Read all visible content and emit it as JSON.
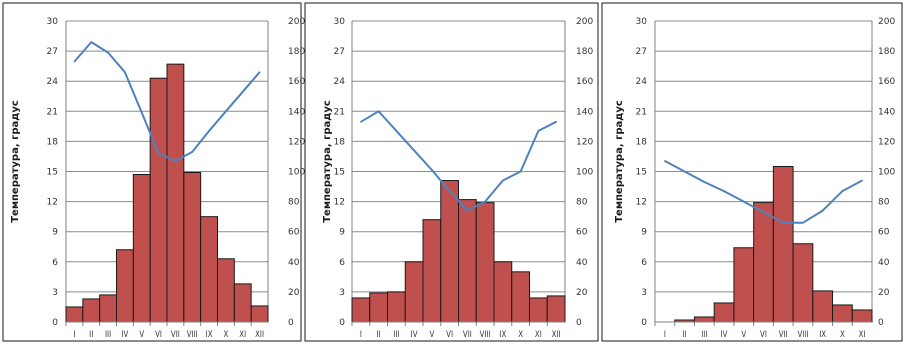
{
  "chart_data": [
    {
      "type": "bar+line",
      "ylabel": "Температура, градус",
      "yticks_left": [
        "0",
        "3",
        "6",
        "9",
        "12",
        "15",
        "18",
        "21",
        "24",
        "27",
        "30"
      ],
      "yticks_right": [
        "0",
        "20",
        "40",
        "60",
        "80",
        "100",
        "120",
        "140",
        "160",
        "180",
        "200"
      ],
      "categories": [
        "I",
        "II",
        "III",
        "IV",
        "V",
        "VI",
        "VII",
        "VIII",
        "IX",
        "X",
        "XI",
        "XII"
      ],
      "ylim": [
        0,
        30
      ],
      "y2lim": [
        0,
        200
      ],
      "bar_color": "#C0504D",
      "line_color": "#4F81BD",
      "bars": [
        1.5,
        2.3,
        2.7,
        7.2,
        14.7,
        24.3,
        25.7,
        14.9,
        10.5,
        6.3,
        3.8,
        1.6
      ],
      "line": [
        173,
        186,
        179,
        166,
        139,
        112,
        107,
        113,
        127,
        140,
        153,
        166
      ]
    },
    {
      "type": "bar+line",
      "ylabel": "Температура, градус",
      "yticks_left": [
        "0",
        "3",
        "6",
        "9",
        "12",
        "15",
        "18",
        "21",
        "24",
        "27",
        "30"
      ],
      "yticks_right": [
        "0",
        "20",
        "40",
        "60",
        "80",
        "100",
        "120",
        "140",
        "160",
        "180",
        "200"
      ],
      "categories": [
        "I",
        "II",
        "III",
        "IV",
        "V",
        "VI",
        "VII",
        "VIII",
        "IX",
        "X",
        "XI",
        "XII"
      ],
      "ylim": [
        0,
        30
      ],
      "y2lim": [
        0,
        200
      ],
      "bar_color": "#C0504D",
      "line_color": "#4F81BD",
      "bars": [
        2.4,
        2.9,
        3.0,
        6.0,
        10.2,
        14.1,
        12.2,
        11.9,
        6.0,
        5.0,
        2.4,
        2.6
      ],
      "line": [
        133,
        140,
        127,
        114,
        101,
        87,
        74,
        80,
        94,
        100,
        127,
        133
      ]
    },
    {
      "type": "bar+line",
      "ylabel": "Температура, градус",
      "yticks_left": [
        "0",
        "3",
        "6",
        "9",
        "12",
        "15",
        "18",
        "21",
        "24",
        "27",
        "30"
      ],
      "yticks_right": [
        "0",
        "20",
        "40",
        "60",
        "80",
        "100",
        "120",
        "140",
        "160",
        "180",
        "200"
      ],
      "categories": [
        "I",
        "II",
        "III",
        "IV",
        "V",
        "VI",
        "VII",
        "VIII",
        "IX",
        "X",
        "XI"
      ],
      "ylim": [
        0,
        30
      ],
      "y2lim": [
        0,
        200
      ],
      "bar_color": "#C0504D",
      "line_color": "#4F81BD",
      "bars": [
        0,
        0.2,
        0.5,
        1.9,
        7.4,
        11.9,
        15.5,
        7.8,
        3.1,
        1.7,
        1.2
      ],
      "line": [
        107,
        100,
        93,
        87,
        80,
        73,
        66,
        66,
        74,
        87,
        94
      ]
    }
  ]
}
